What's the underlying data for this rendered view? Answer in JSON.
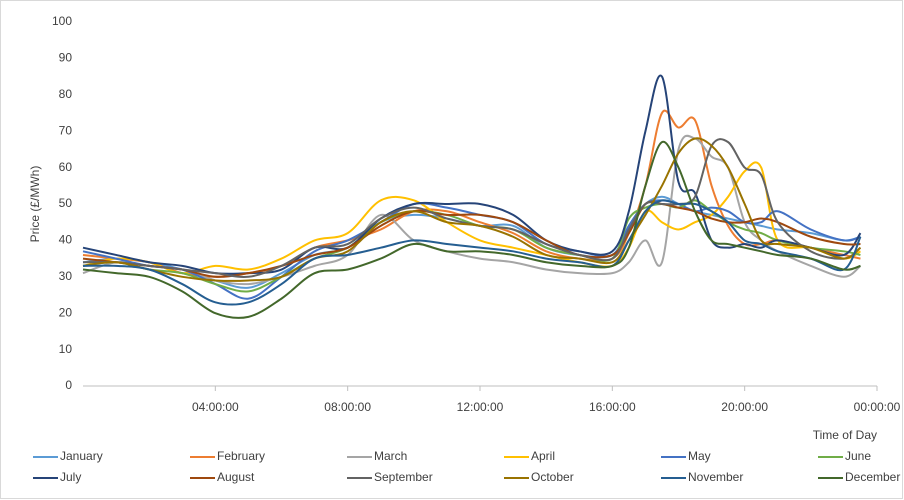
{
  "chart_data": {
    "type": "line",
    "y_label": "Price (£/MWh)",
    "x_label": "Time of Day",
    "x": [
      0,
      1,
      2,
      3,
      4,
      5,
      6,
      7,
      8,
      9,
      10,
      11,
      12,
      13,
      14,
      15,
      16,
      16.5,
      17,
      17.5,
      18,
      18.5,
      19,
      19.5,
      20,
      20.5,
      21,
      22,
      23,
      23.5
    ],
    "xlim": [
      0,
      24
    ],
    "xticks": [
      {
        "value": 4,
        "label": "04:00:00"
      },
      {
        "value": 8,
        "label": "08:00:00"
      },
      {
        "value": 12,
        "label": "12:00:00"
      },
      {
        "value": 16,
        "label": "16:00:00"
      },
      {
        "value": 20,
        "label": "20:00:00"
      },
      {
        "value": 24,
        "label": "00:00:00"
      }
    ],
    "ylim": [
      0,
      100
    ],
    "yticks": [
      0,
      10,
      20,
      30,
      40,
      50,
      60,
      70,
      80,
      90,
      100
    ],
    "grid": false,
    "legend": "bottom",
    "series": [
      {
        "name": "January",
        "color": "#5b9bd5",
        "values": [
          34,
          35,
          34,
          32,
          29,
          27,
          31,
          36,
          38,
          45,
          47,
          46,
          44,
          44,
          38,
          36,
          36,
          44,
          50,
          52,
          50,
          48,
          47,
          46,
          45,
          44,
          43,
          42,
          40,
          41
        ]
      },
      {
        "name": "February",
        "color": "#ed7d31",
        "values": [
          36,
          35,
          34,
          31,
          30,
          31,
          33,
          38,
          40,
          43,
          48,
          48,
          45,
          42,
          37,
          35,
          35,
          42,
          55,
          75,
          71,
          73,
          55,
          44,
          39,
          39,
          40,
          38,
          36,
          35
        ]
      },
      {
        "name": "March",
        "color": "#a5a5a5",
        "values": [
          31,
          34,
          33,
          32,
          29,
          28,
          30,
          33,
          36,
          47,
          40,
          37,
          35,
          34,
          32,
          31,
          31,
          34,
          40,
          34,
          65,
          68,
          63,
          60,
          45,
          40,
          37,
          33,
          30,
          33
        ]
      },
      {
        "name": "April",
        "color": "#ffc000",
        "values": [
          33,
          35,
          34,
          31,
          33,
          32,
          35,
          40,
          42,
          51,
          51,
          45,
          40,
          38,
          36,
          34,
          33,
          38,
          48,
          45,
          43,
          45,
          47,
          52,
          59,
          60,
          40,
          38,
          35,
          37
        ]
      },
      {
        "name": "May",
        "color": "#4472c4",
        "values": [
          37,
          35,
          33,
          32,
          28,
          24,
          30,
          37,
          40,
          45,
          50,
          49,
          47,
          45,
          39,
          37,
          36,
          44,
          50,
          51,
          50,
          48,
          49,
          48,
          45,
          45,
          48,
          43,
          40,
          41
        ]
      },
      {
        "name": "June",
        "color": "#70ad47",
        "values": [
          33,
          34,
          32,
          31,
          28,
          26,
          30,
          35,
          38,
          45,
          48,
          47,
          44,
          43,
          38,
          36,
          35,
          46,
          49,
          50,
          49,
          51,
          48,
          45,
          43,
          42,
          40,
          38,
          37,
          36
        ]
      },
      {
        "name": "July",
        "color": "#264478",
        "values": [
          38,
          36,
          34,
          33,
          31,
          31,
          32,
          38,
          38,
          46,
          50,
          50,
          50,
          47,
          40,
          37,
          37,
          48,
          70,
          85,
          56,
          53,
          40,
          38,
          39,
          38,
          40,
          38,
          36,
          42
        ]
      },
      {
        "name": "August",
        "color": "#9e480e",
        "values": [
          35,
          34,
          33,
          32,
          30,
          31,
          33,
          36,
          38,
          44,
          48,
          47,
          47,
          45,
          40,
          36,
          36,
          42,
          50,
          50,
          49,
          48,
          46,
          45,
          45,
          46,
          45,
          41,
          39,
          39
        ]
      },
      {
        "name": "September",
        "color": "#636363",
        "values": [
          34,
          34,
          33,
          32,
          31,
          30,
          33,
          38,
          39,
          46,
          49,
          46,
          44,
          43,
          39,
          36,
          35,
          43,
          50,
          50,
          50,
          52,
          66,
          67,
          60,
          58,
          45,
          37,
          35,
          38
        ]
      },
      {
        "name": "October",
        "color": "#997300",
        "values": [
          33,
          34,
          32,
          30,
          29,
          29,
          30,
          35,
          37,
          45,
          48,
          45,
          44,
          41,
          36,
          35,
          34,
          40,
          47,
          55,
          64,
          68,
          66,
          60,
          50,
          40,
          39,
          38,
          35,
          38
        ]
      },
      {
        "name": "November",
        "color": "#255e91",
        "values": [
          33,
          33,
          32,
          28,
          23,
          23,
          28,
          35,
          36,
          38,
          40,
          39,
          38,
          37,
          35,
          34,
          33,
          40,
          48,
          51,
          50,
          50,
          48,
          45,
          40,
          39,
          37,
          35,
          32,
          41
        ]
      },
      {
        "name": "December",
        "color": "#43682b",
        "values": [
          32,
          31,
          30,
          26,
          20,
          19,
          24,
          31,
          32,
          35,
          39,
          37,
          37,
          36,
          34,
          33,
          33,
          38,
          55,
          67,
          60,
          48,
          40,
          39,
          38,
          37,
          36,
          35,
          32,
          33
        ]
      }
    ]
  }
}
